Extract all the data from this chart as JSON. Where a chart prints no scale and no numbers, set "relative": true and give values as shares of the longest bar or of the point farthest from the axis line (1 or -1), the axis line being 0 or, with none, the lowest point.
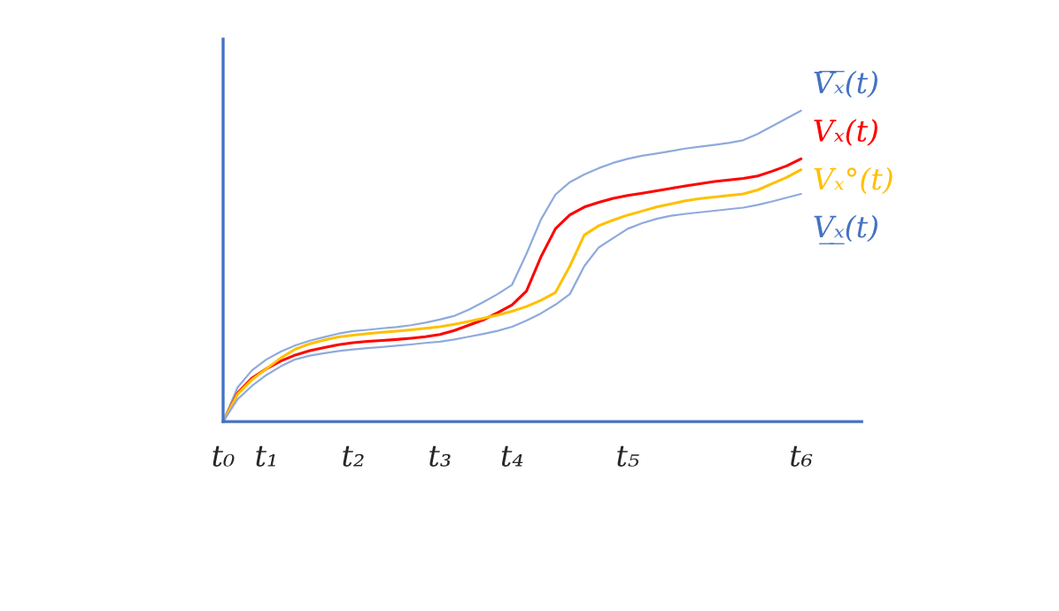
{
  "chart_data": {
    "type": "line",
    "relative": true,
    "legend": false,
    "grid": false,
    "categories": [
      "t₀",
      null,
      null,
      "t₁",
      null,
      null,
      null,
      null,
      null,
      "t₂",
      null,
      null,
      null,
      null,
      null,
      "t₃",
      null,
      null,
      null,
      null,
      "t₄",
      null,
      null,
      null,
      null,
      null,
      null,
      null,
      "t₅",
      null,
      null,
      null,
      null,
      null,
      null,
      null,
      null,
      null,
      null,
      null,
      "t₆"
    ],
    "series": [
      {
        "name": "V̅ₓ̅(t)",
        "color": "#8faadc",
        "values": [
          0,
          0.11,
          0.165,
          0.2,
          0.225,
          0.245,
          0.26,
          0.272,
          0.283,
          0.291,
          0.295,
          0.3,
          0.304,
          0.31,
          0.318,
          0.328,
          0.34,
          0.36,
          0.384,
          0.41,
          0.44,
          0.54,
          0.65,
          0.73,
          0.77,
          0.795,
          0.815,
          0.832,
          0.845,
          0.855,
          0.862,
          0.87,
          0.878,
          0.884,
          0.89,
          0.896,
          0.905,
          0.925,
          0.95,
          0.975,
          1.0
        ]
      },
      {
        "name": "Vₓ(t)",
        "color": "#ff0000",
        "values": [
          0,
          0.092,
          0.14,
          0.17,
          0.195,
          0.214,
          0.228,
          0.238,
          0.247,
          0.254,
          0.258,
          0.261,
          0.264,
          0.268,
          0.273,
          0.28,
          0.293,
          0.31,
          0.327,
          0.35,
          0.375,
          0.42,
          0.53,
          0.62,
          0.665,
          0.69,
          0.705,
          0.718,
          0.727,
          0.734,
          0.742,
          0.75,
          0.758,
          0.765,
          0.772,
          0.777,
          0.782,
          0.79,
          0.805,
          0.822,
          0.845
        ]
      },
      {
        "name": "Vₓ°(t)",
        "color": "#ffc000",
        "values": [
          0,
          0.088,
          0.135,
          0.17,
          0.205,
          0.233,
          0.25,
          0.262,
          0.272,
          0.278,
          0.283,
          0.287,
          0.291,
          0.295,
          0.3,
          0.305,
          0.313,
          0.322,
          0.332,
          0.343,
          0.355,
          0.37,
          0.39,
          0.415,
          0.5,
          0.6,
          0.63,
          0.648,
          0.664,
          0.677,
          0.69,
          0.7,
          0.71,
          0.717,
          0.722,
          0.727,
          0.732,
          0.745,
          0.765,
          0.785,
          0.81
        ]
      },
      {
        "name": "V̲ₓ̲(t)",
        "color": "#8faadc",
        "values": [
          0,
          0.072,
          0.115,
          0.15,
          0.178,
          0.2,
          0.212,
          0.22,
          0.227,
          0.232,
          0.236,
          0.24,
          0.244,
          0.248,
          0.253,
          0.257,
          0.264,
          0.273,
          0.282,
          0.292,
          0.305,
          0.325,
          0.348,
          0.376,
          0.41,
          0.5,
          0.56,
          0.59,
          0.62,
          0.638,
          0.652,
          0.662,
          0.668,
          0.673,
          0.678,
          0.683,
          0.688,
          0.697,
          0.708,
          0.72,
          0.732
        ]
      }
    ]
  }
}
